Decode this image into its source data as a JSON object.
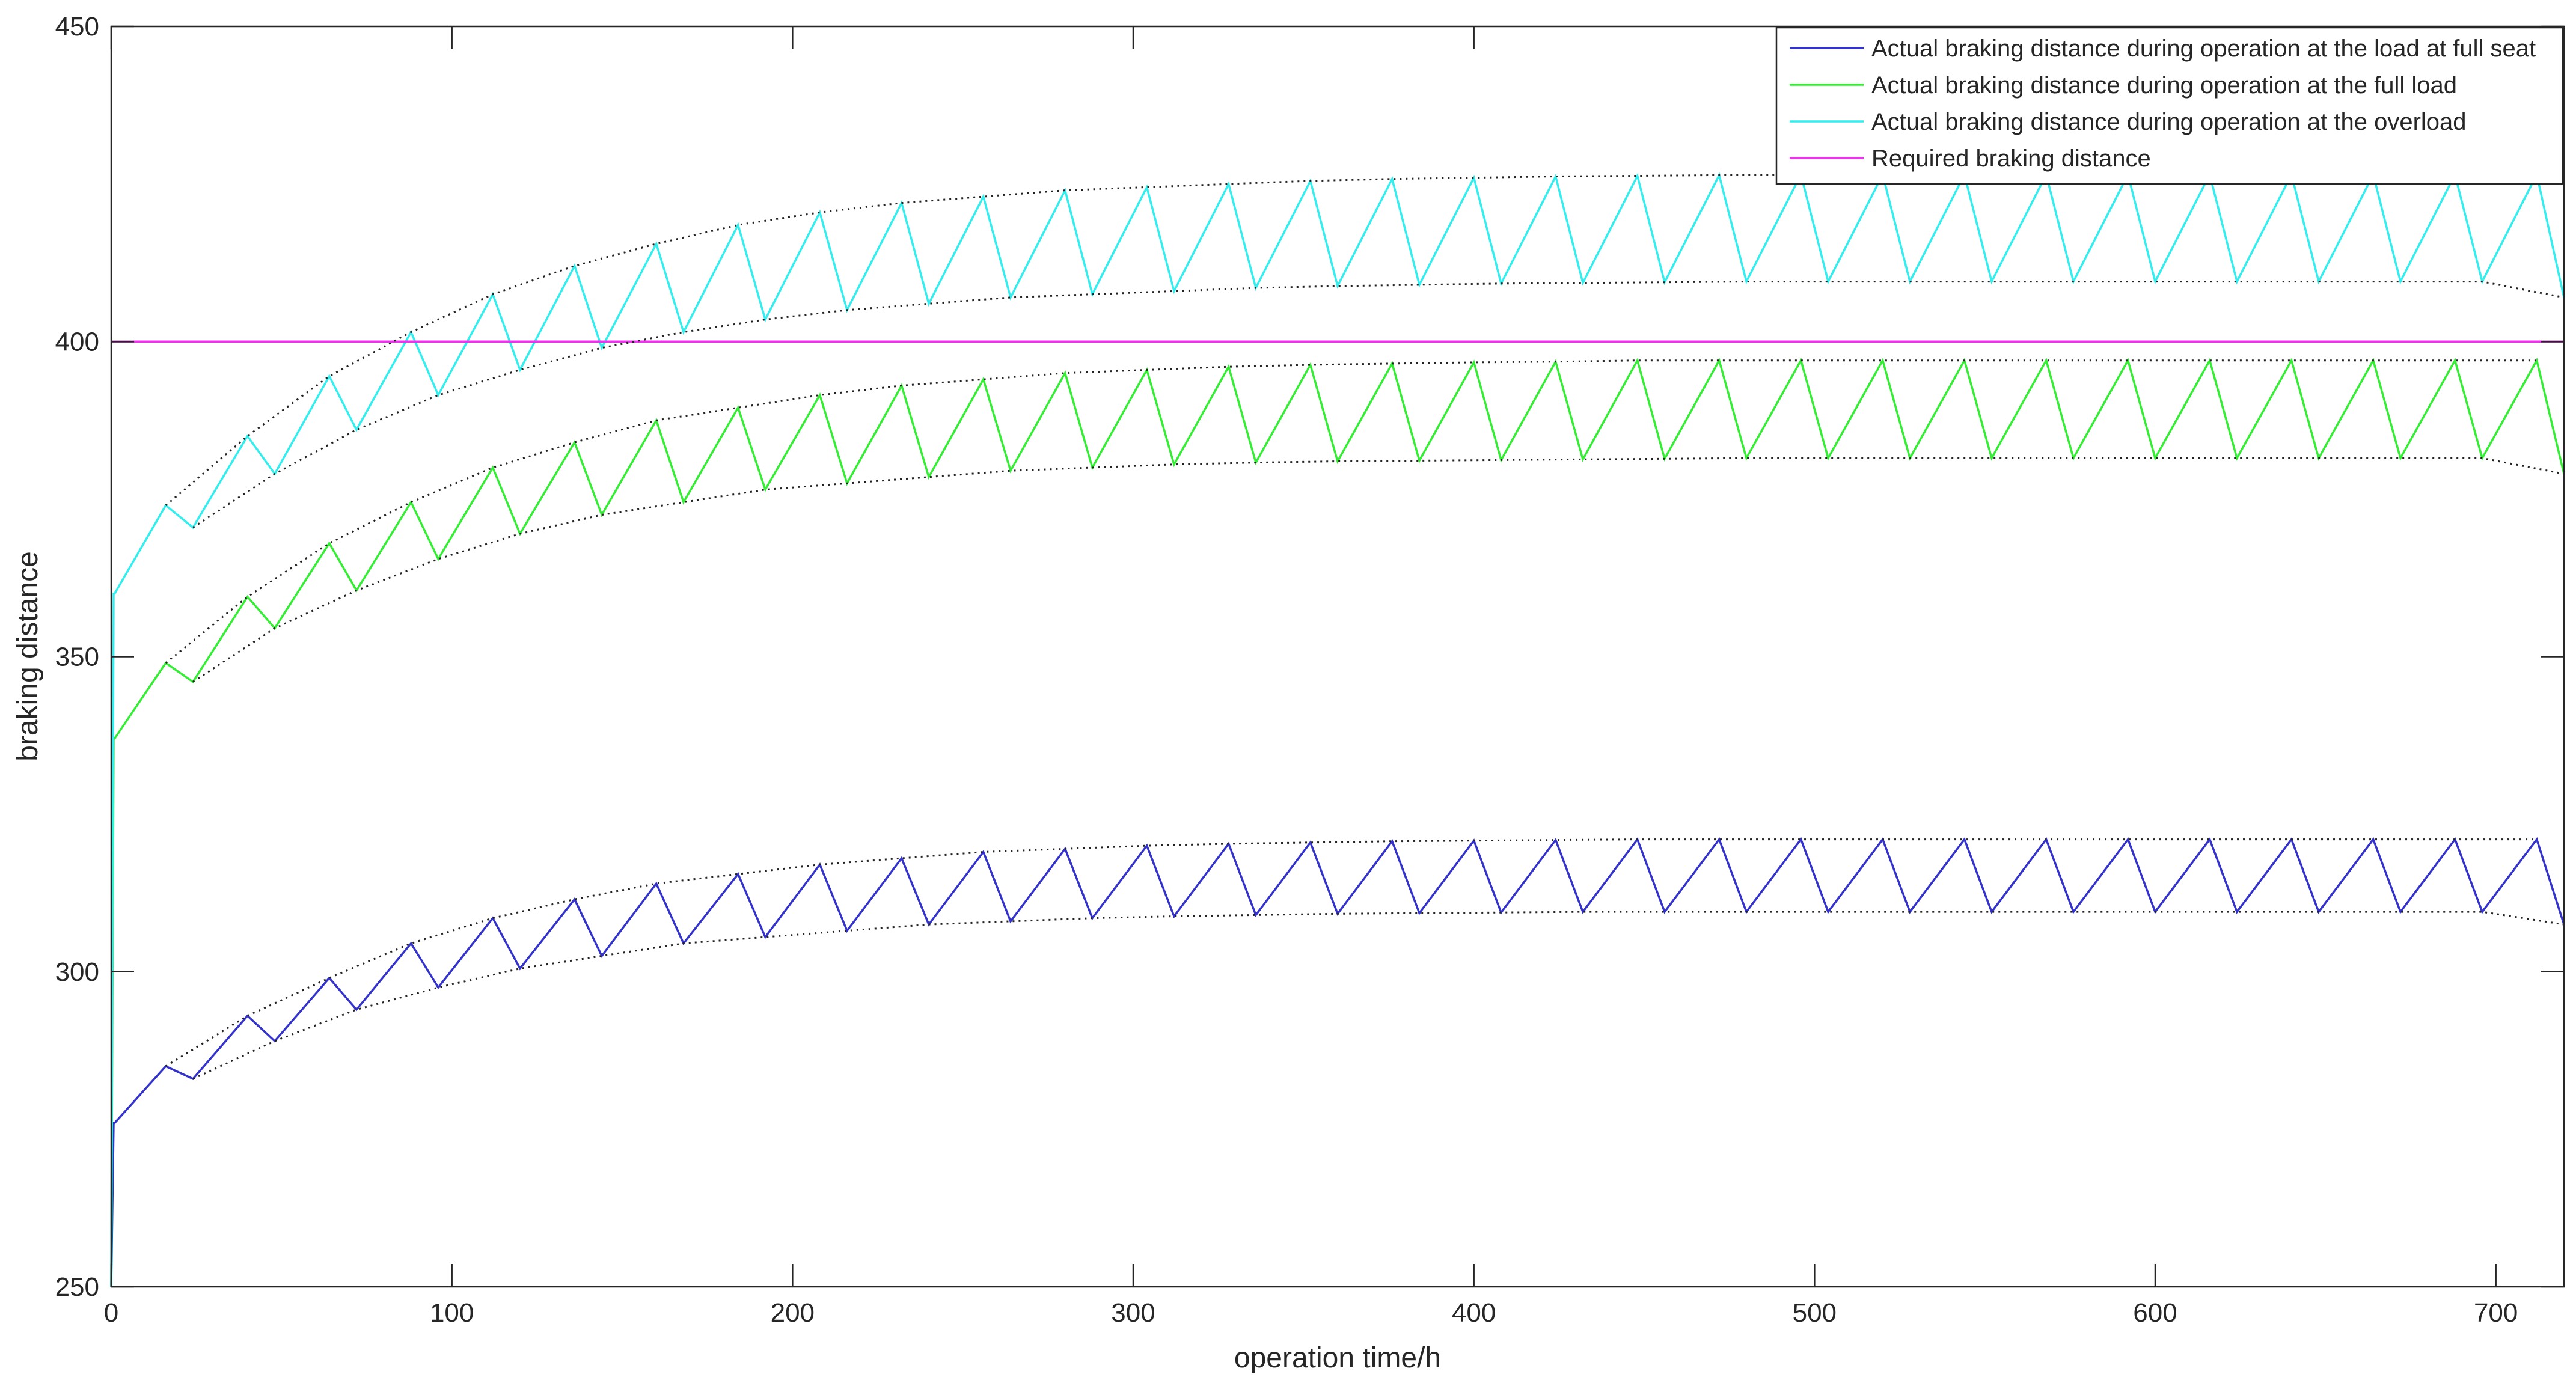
{
  "chart_data": {
    "type": "line",
    "title": "",
    "xlabel": "operation time/h",
    "ylabel": "braking distance",
    "xlim": [
      0,
      720
    ],
    "ylim": [
      250,
      450
    ],
    "xticks": [
      0,
      100,
      200,
      300,
      400,
      500,
      600,
      700
    ],
    "yticks": [
      250,
      300,
      350,
      400,
      450
    ],
    "grid": false,
    "legend_position": "top-right",
    "cycle_hours": 24,
    "start_value_hours": 0,
    "series": [
      {
        "name": "Actual braking distance during operation at the load at full seat",
        "color": "#3333cc",
        "start": [
          [
            0,
            250
          ],
          [
            0.7,
            276
          ]
        ],
        "segments": [
          [
            1,
            276,
            16,
            285,
            24,
            283
          ],
          [
            24,
            283,
            40,
            293,
            48,
            289
          ],
          [
            48,
            289,
            64,
            299,
            72,
            294
          ],
          [
            72,
            294,
            88,
            304.5,
            96,
            297.5
          ],
          [
            96,
            297.5,
            112,
            308.5,
            120,
            300.5
          ],
          [
            120,
            300.5,
            136,
            311.5,
            144,
            302.5
          ],
          [
            144,
            302.5,
            160,
            314,
            168,
            304.5
          ],
          [
            168,
            304.5,
            184,
            315.5,
            192,
            305.5
          ],
          [
            192,
            305.5,
            208,
            317,
            216,
            306.5
          ],
          [
            216,
            306.5,
            232,
            318,
            240,
            307.5
          ],
          [
            240,
            307.5,
            256,
            319,
            264,
            308
          ],
          [
            264,
            308,
            280,
            319.5,
            288,
            308.5
          ],
          [
            288,
            308.5,
            304,
            320,
            312,
            308.8
          ],
          [
            312,
            308.8,
            328,
            320.3,
            336,
            309
          ],
          [
            336,
            309,
            352,
            320.5,
            360,
            309.2
          ],
          [
            360,
            309.2,
            376,
            320.7,
            384,
            309.3
          ],
          [
            384,
            309.3,
            400,
            320.8,
            408,
            309.4
          ],
          [
            408,
            309.4,
            424,
            320.9,
            432,
            309.5
          ],
          [
            432,
            309.5,
            448,
            321,
            456,
            309.5
          ],
          [
            456,
            309.5,
            472,
            321,
            480,
            309.5
          ],
          [
            480,
            309.5,
            496,
            321,
            504,
            309.5
          ],
          [
            504,
            309.5,
            520,
            321,
            528,
            309.5
          ],
          [
            528,
            309.5,
            544,
            321,
            552,
            309.5
          ],
          [
            552,
            309.5,
            568,
            321,
            576,
            309.5
          ],
          [
            576,
            309.5,
            592,
            321,
            600,
            309.5
          ],
          [
            600,
            309.5,
            616,
            321,
            624,
            309.5
          ],
          [
            624,
            309.5,
            640,
            321,
            648,
            309.5
          ],
          [
            648,
            309.5,
            664,
            321,
            672,
            309.5
          ],
          [
            672,
            309.5,
            688,
            321,
            696,
            309.5
          ],
          [
            696,
            309.5,
            712,
            321,
            720,
            307.5
          ]
        ]
      },
      {
        "name": "Actual braking distance during operation at the full load",
        "color": "#33ee33",
        "start": [
          [
            0,
            250
          ],
          [
            0.7,
            337
          ]
        ],
        "segments": [
          [
            1,
            337,
            16,
            349,
            24,
            346
          ],
          [
            24,
            346,
            40,
            359.5,
            48,
            354.5
          ],
          [
            48,
            354.5,
            64,
            368,
            72,
            360.5
          ],
          [
            72,
            360.5,
            88,
            374.5,
            96,
            365.5
          ],
          [
            96,
            365.5,
            112,
            380,
            120,
            369.5
          ],
          [
            120,
            369.5,
            136,
            384,
            144,
            372.5
          ],
          [
            144,
            372.5,
            160,
            387.5,
            168,
            374.5
          ],
          [
            168,
            374.5,
            184,
            389.5,
            192,
            376.5
          ],
          [
            192,
            376.5,
            208,
            391.5,
            216,
            377.5
          ],
          [
            216,
            377.5,
            232,
            393,
            240,
            378.5
          ],
          [
            240,
            378.5,
            256,
            394,
            264,
            379.5
          ],
          [
            264,
            379.5,
            280,
            395,
            288,
            380
          ],
          [
            288,
            380,
            304,
            395.5,
            312,
            380.5
          ],
          [
            312,
            380.5,
            328,
            396,
            336,
            380.8
          ],
          [
            336,
            380.8,
            352,
            396.3,
            360,
            381
          ],
          [
            360,
            381,
            376,
            396.5,
            384,
            381.1
          ],
          [
            384,
            381.1,
            400,
            396.7,
            408,
            381.2
          ],
          [
            408,
            381.2,
            424,
            396.8,
            432,
            381.3
          ],
          [
            432,
            381.3,
            448,
            397,
            456,
            381.4
          ],
          [
            456,
            381.4,
            472,
            397,
            480,
            381.5
          ],
          [
            480,
            381.5,
            496,
            397,
            504,
            381.5
          ],
          [
            504,
            381.5,
            520,
            397,
            528,
            381.5
          ],
          [
            528,
            381.5,
            544,
            397,
            552,
            381.5
          ],
          [
            552,
            381.5,
            568,
            397,
            576,
            381.5
          ],
          [
            576,
            381.5,
            592,
            397,
            600,
            381.5
          ],
          [
            600,
            381.5,
            616,
            397,
            624,
            381.5
          ],
          [
            624,
            381.5,
            640,
            397,
            648,
            381.5
          ],
          [
            648,
            381.5,
            664,
            397,
            672,
            381.5
          ],
          [
            672,
            381.5,
            688,
            397,
            696,
            381.5
          ],
          [
            696,
            381.5,
            712,
            397,
            720,
            379
          ]
        ]
      },
      {
        "name": "Actual braking distance during operation at the overload",
        "color": "#33eeee",
        "start": [
          [
            0,
            250
          ],
          [
            0.7,
            360
          ]
        ],
        "segments": [
          [
            1,
            360,
            16,
            374,
            24,
            370.5
          ],
          [
            24,
            370.5,
            40,
            385,
            48,
            379
          ],
          [
            48,
            379,
            64,
            394.5,
            72,
            386
          ],
          [
            72,
            386,
            88,
            401.5,
            96,
            391.5
          ],
          [
            96,
            391.5,
            112,
            407.5,
            120,
            395.5
          ],
          [
            120,
            395.5,
            136,
            412,
            144,
            399
          ],
          [
            144,
            399,
            160,
            415.5,
            168,
            401.5
          ],
          [
            168,
            401.5,
            184,
            418.5,
            192,
            403.5
          ],
          [
            192,
            403.5,
            208,
            420.5,
            216,
            405
          ],
          [
            216,
            405,
            232,
            422,
            240,
            406
          ],
          [
            240,
            406,
            256,
            423,
            264,
            407
          ],
          [
            264,
            407,
            280,
            424,
            288,
            407.5
          ],
          [
            288,
            407.5,
            304,
            424.5,
            312,
            408
          ],
          [
            312,
            408,
            328,
            425,
            336,
            408.5
          ],
          [
            336,
            408.5,
            352,
            425.5,
            360,
            408.8
          ],
          [
            360,
            408.8,
            376,
            425.8,
            384,
            409
          ],
          [
            384,
            409,
            400,
            426,
            408,
            409.2
          ],
          [
            408,
            409.2,
            424,
            426.2,
            432,
            409.3
          ],
          [
            432,
            409.3,
            448,
            426.3,
            456,
            409.4
          ],
          [
            456,
            409.4,
            472,
            426.4,
            480,
            409.5
          ],
          [
            480,
            409.5,
            496,
            426.5,
            504,
            409.5
          ],
          [
            504,
            409.5,
            520,
            426.5,
            528,
            409.5
          ],
          [
            528,
            409.5,
            544,
            426.5,
            552,
            409.5
          ],
          [
            552,
            409.5,
            568,
            426.5,
            576,
            409.5
          ],
          [
            576,
            409.5,
            592,
            426.5,
            600,
            409.5
          ],
          [
            600,
            409.5,
            616,
            426.5,
            624,
            409.5
          ],
          [
            624,
            409.5,
            640,
            426.5,
            648,
            409.5
          ],
          [
            648,
            409.5,
            664,
            426.5,
            672,
            409.5
          ],
          [
            672,
            409.5,
            688,
            426.5,
            696,
            409.5
          ],
          [
            696,
            409.5,
            712,
            426.5,
            720,
            407
          ]
        ]
      },
      {
        "name": "Required braking distance",
        "color": "#ee33ee",
        "x": [
          0,
          720
        ],
        "y": [
          400,
          400
        ]
      }
    ],
    "envelope_color": "#222222"
  }
}
